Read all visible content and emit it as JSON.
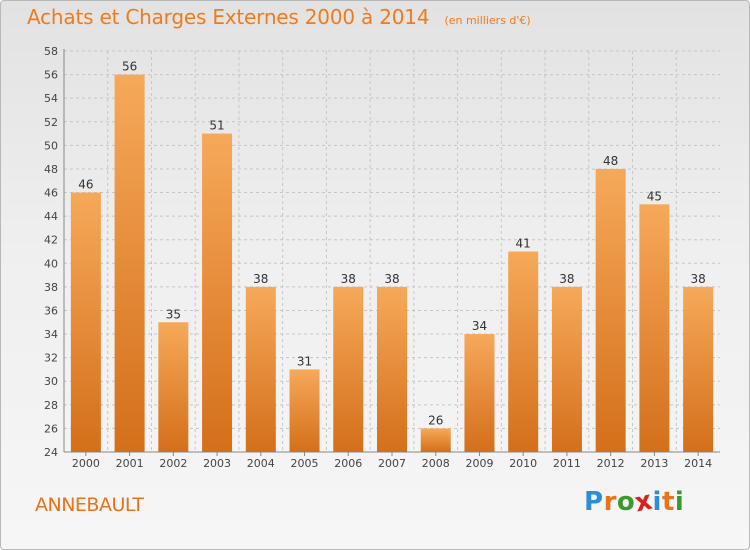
{
  "header": {
    "title": "Achats et Charges Externes 2000 à 2014",
    "unit_note": "(en milliers d'€)"
  },
  "footer": {
    "commune": "ANNEBAULT",
    "brand_letters": [
      "P",
      "r",
      "o",
      "x",
      "i",
      "t",
      "i"
    ],
    "brand_colors": [
      "#2a8fd6",
      "#e8731a",
      "#3c9a2d",
      "#d92121",
      "#2a8fd6",
      "#e8731a",
      "#3c9a2d"
    ]
  },
  "colors": {
    "title": "#f07b1c",
    "bar_light": "#f6a95a",
    "bar_dark": "#d46f1a",
    "axis_text": "#444444",
    "grid": "#c6c6c6"
  },
  "chart_data": {
    "type": "bar",
    "title": "Achats et Charges Externes 2000 à 2014",
    "subtitle": "(en milliers d'€)",
    "categories": [
      "2000",
      "2001",
      "2002",
      "2003",
      "2004",
      "2005",
      "2006",
      "2007",
      "2008",
      "2009",
      "2010",
      "2011",
      "2012",
      "2013",
      "2014"
    ],
    "values": [
      46,
      56,
      35,
      51,
      38,
      31,
      38,
      38,
      26,
      34,
      41,
      38,
      48,
      45,
      38
    ],
    "ylim": [
      24,
      58
    ],
    "ytick_step": 2,
    "grid": "horizontal-dashed",
    "data_labels": true,
    "legend": "none"
  }
}
